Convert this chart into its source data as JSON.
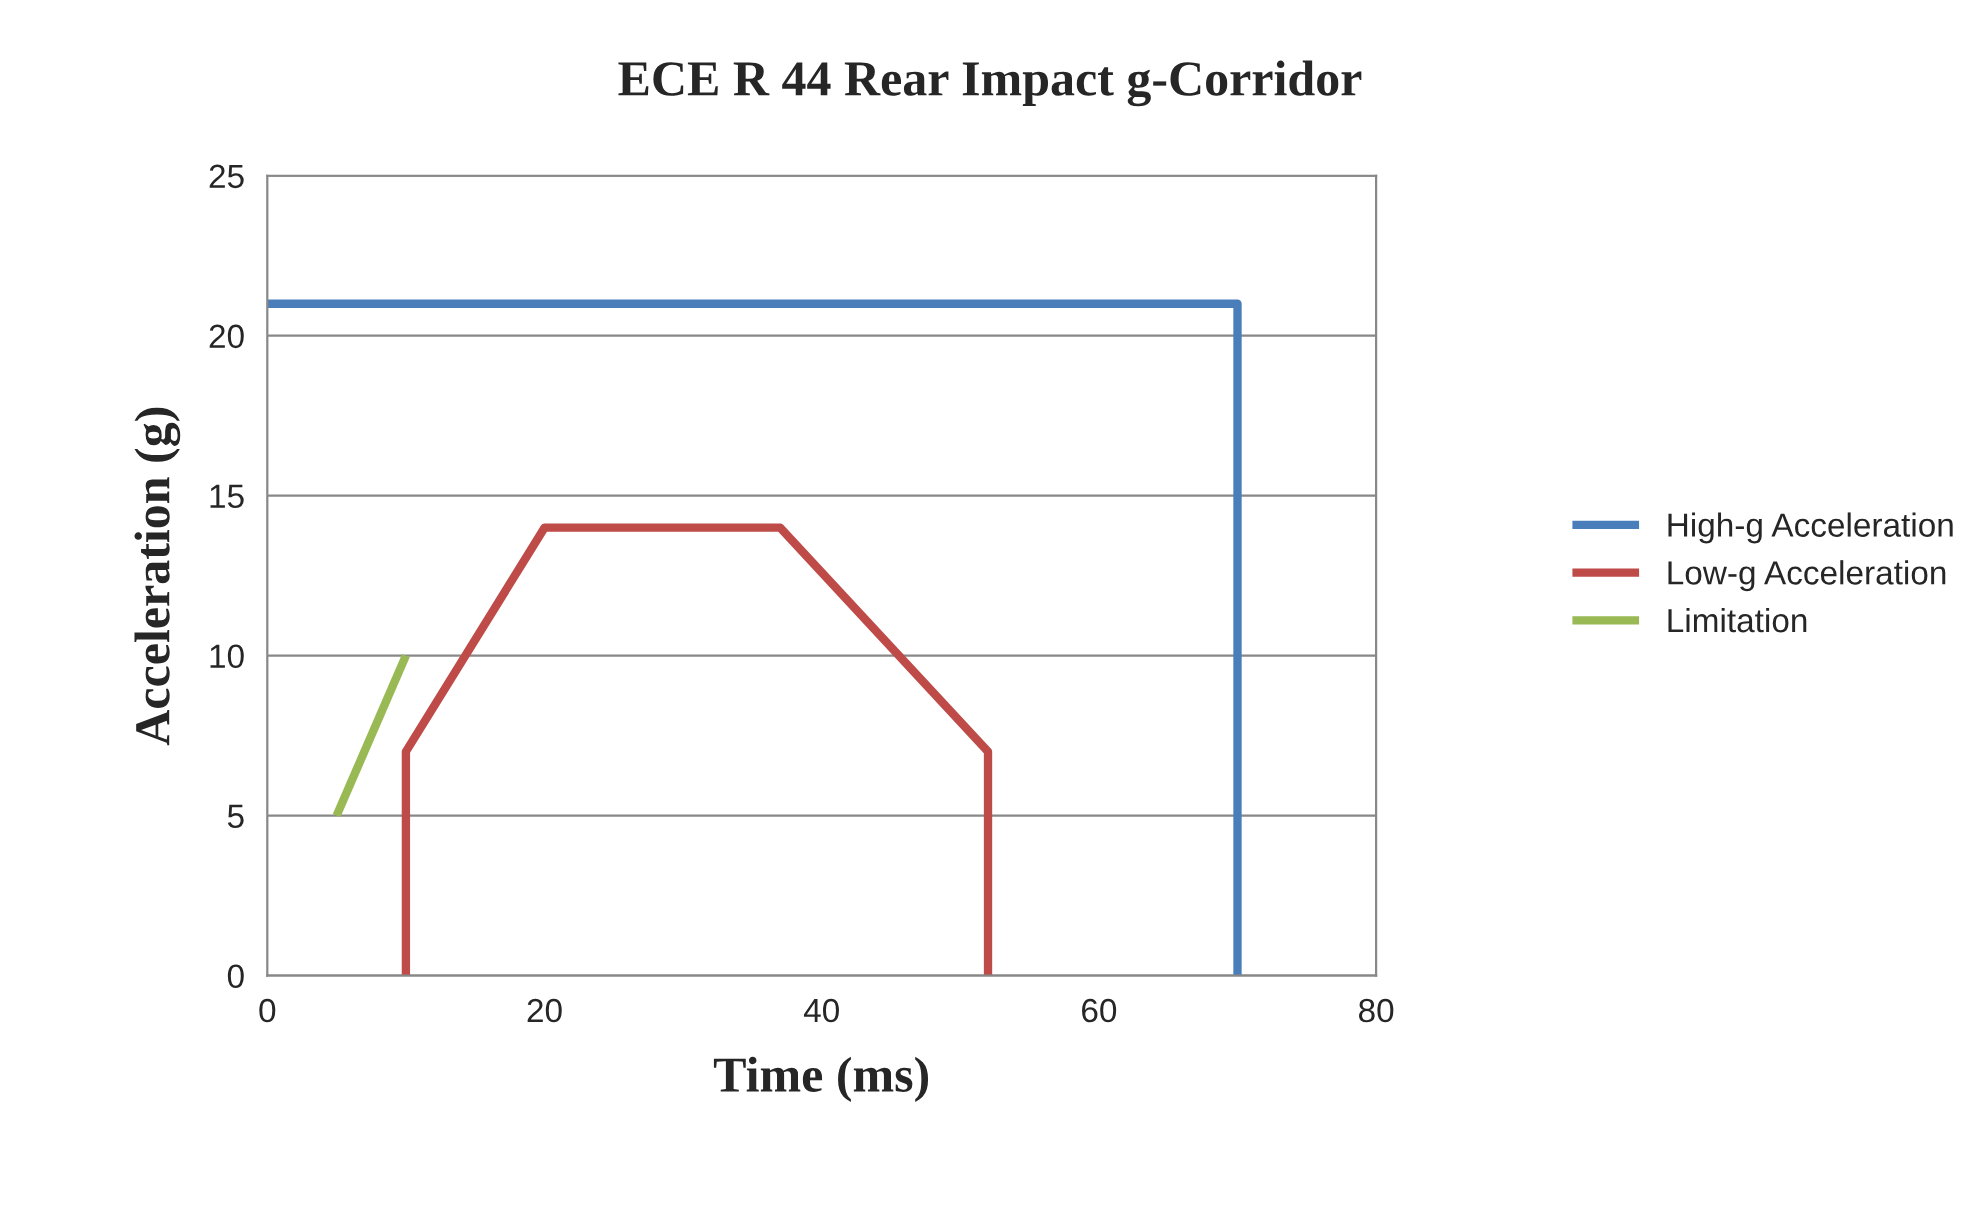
{
  "chart_data": {
    "type": "line",
    "title": "ECE R 44 Rear Impact g-Corridor",
    "xlabel": "Time (ms)",
    "ylabel": "Acceleration (g)",
    "series": [
      {
        "name": "High-g Acceleration",
        "color": "#4a7ebb",
        "x": [
          0,
          70,
          70
        ],
        "values": [
          21,
          21,
          0
        ]
      },
      {
        "name": "Low-g Acceleration",
        "color": "#be4b48",
        "x": [
          10,
          10,
          20,
          37,
          52,
          52
        ],
        "values": [
          0,
          7,
          14,
          14,
          7,
          0
        ]
      },
      {
        "name": "Limitation",
        "color": "#98b954",
        "x": [
          5,
          10
        ],
        "values": [
          5,
          10
        ]
      }
    ],
    "xlim": [
      0,
      80
    ],
    "xticks": [
      0,
      20,
      40,
      60,
      80
    ],
    "ylim": [
      0,
      25
    ],
    "yticks": [
      0,
      5,
      10,
      15,
      20,
      25
    ],
    "grid": "y",
    "legend": "right",
    "marker": "none",
    "line_style": "solid"
  }
}
